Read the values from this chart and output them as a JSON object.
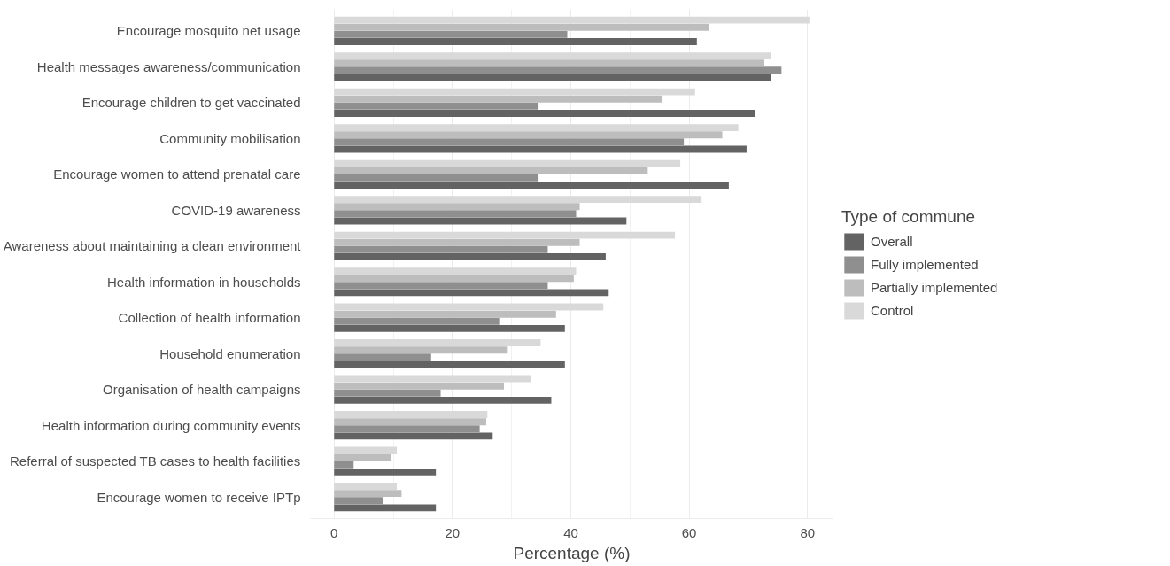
{
  "chart_data": {
    "type": "bar",
    "orientation": "horizontal",
    "xlabel": "Percentage (%)",
    "legend_title": "Type of commune",
    "categories": [
      "Encourage mosquito net usage",
      "Health messages awareness/communication",
      "Encourage children to get vaccinated",
      "Community mobilisation",
      "Encourage women to attend prenatal care",
      "COVID-19 awareness",
      "Awareness about maintaining a clean environment",
      "Health information in households",
      "Collection of health information",
      "Household enumeration",
      "Organisation of health campaigns",
      "Health information during community events",
      "Referral of suspected TB cases to health facilities",
      "Encourage women to receive IPTp"
    ],
    "series": [
      {
        "name": "Overall",
        "color": "#636363",
        "values": [
          61.3,
          73.8,
          71.2,
          69.7,
          66.7,
          49.4,
          45.9,
          46.4,
          39.0,
          39.0,
          36.7,
          26.8,
          17.2,
          17.2
        ]
      },
      {
        "name": "Fully implemented",
        "color": "#8f8f8f",
        "values": [
          39.4,
          75.6,
          34.4,
          59.1,
          34.4,
          40.9,
          36.1,
          36.1,
          27.9,
          16.4,
          18.0,
          24.6,
          3.3,
          8.2
        ]
      },
      {
        "name": "Partially implemented",
        "color": "#bdbdbd",
        "values": [
          63.4,
          72.7,
          55.5,
          65.6,
          53.0,
          41.5,
          41.5,
          40.5,
          37.5,
          29.2,
          28.7,
          25.7,
          9.6,
          11.4
        ]
      },
      {
        "name": "Control",
        "color": "#d9d9d9",
        "values": [
          80.3,
          73.8,
          61.0,
          68.3,
          58.5,
          62.1,
          57.6,
          40.9,
          45.5,
          34.9,
          33.3,
          25.9,
          10.6,
          10.6
        ]
      }
    ],
    "xlim": [
      -4,
      84.3
    ],
    "xticks": [
      0,
      20,
      40,
      60,
      80
    ],
    "grid": "x",
    "legend": "right"
  }
}
